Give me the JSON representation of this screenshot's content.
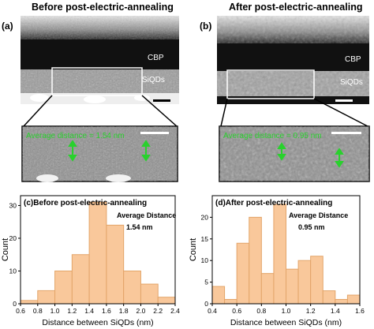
{
  "figure": {
    "panel_a": {
      "label": "(a)",
      "title": "Before post-electric-annealing",
      "layer_top": "CBP",
      "layer_bottom": "SiQDs",
      "zoom_caption": "Average distance = 1.54 nm"
    },
    "panel_b": {
      "label": "(b)",
      "title": "After post-electric-annealing",
      "layer_top": "CBP",
      "layer_bottom": "SiQDs",
      "zoom_caption": "Average distance = 0.95 nm"
    },
    "colors": {
      "bar_fill": "#f9c89b",
      "bar_edge": "#e3a56a",
      "annotation_green": "#29d12d",
      "scale_bar": "#000000"
    }
  },
  "chart_data": [
    {
      "type": "bar",
      "panel": "(c)",
      "title": "Before post-electric-annealing",
      "annotation": [
        "Average Distance",
        "1.54 nm"
      ],
      "xlabel": "Distance between SiQDs (nm)",
      "ylabel": "Count",
      "bin_edges": [
        0.6,
        0.8,
        1.0,
        1.2,
        1.4,
        1.6,
        1.8,
        2.0,
        2.2,
        2.4
      ],
      "values": [
        1,
        4,
        10,
        15,
        31,
        24,
        10,
        6,
        2
      ],
      "xlim": [
        0.6,
        2.4
      ],
      "ylim": [
        0,
        33
      ],
      "xticks": [
        "0.6",
        "0.8",
        "1.0",
        "1.2",
        "1.4",
        "1.6",
        "1.8",
        "2.0",
        "2.2",
        "2.4"
      ],
      "yticks": [
        "0",
        "10",
        "20",
        "30"
      ]
    },
    {
      "type": "bar",
      "panel": "(d)",
      "title": "After post-electric-annealing",
      "annotation": [
        "Average Distance",
        "0.95 nm"
      ],
      "xlabel": "Distance between SiQDs (nm)",
      "ylabel": "Count",
      "bin_edges": [
        0.4,
        0.5,
        0.6,
        0.7,
        0.8,
        0.9,
        1.0,
        1.1,
        1.2,
        1.3,
        1.4,
        1.5,
        1.6
      ],
      "values": [
        4,
        1,
        14,
        20,
        7,
        23,
        8,
        10,
        11,
        3,
        1,
        2
      ],
      "xlim": [
        0.4,
        1.6
      ],
      "ylim": [
        0,
        25
      ],
      "xticks": [
        "0.4",
        "0.6",
        "0.8",
        "1.0",
        "1.2",
        "1.4",
        "1.6"
      ],
      "yticks": [
        "0",
        "5",
        "10",
        "15",
        "20"
      ]
    }
  ]
}
